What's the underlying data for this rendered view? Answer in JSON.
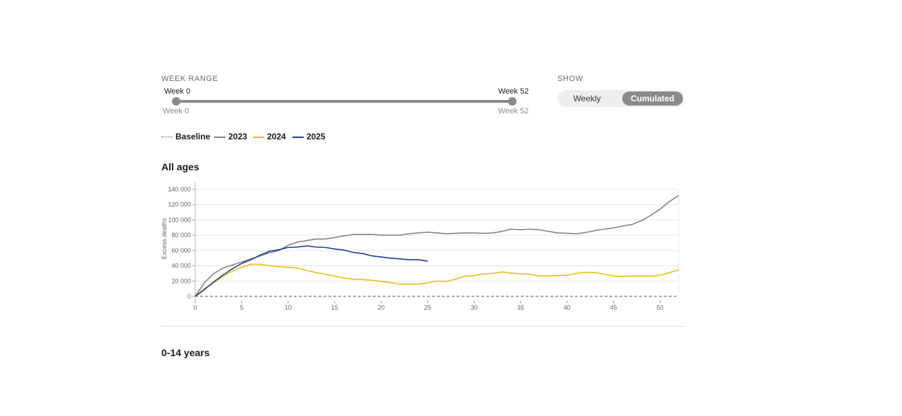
{
  "controls": {
    "week_range_label": "WEEK RANGE",
    "slider_min_label": "Week 0",
    "slider_max_label": "Week 52",
    "slider_min_value": "Week 0",
    "slider_max_value": "Week 52",
    "show_label": "SHOW",
    "toggle_weekly": "Weekly",
    "toggle_cumulated": "Cumulated",
    "selected": "Cumulated"
  },
  "legend": {
    "baseline": "Baseline",
    "y2023": "2023",
    "y2024": "2024",
    "y2025": "2025"
  },
  "section_title": "All ages",
  "next_section_title": "0-14 years",
  "colors": {
    "2023": "#858585",
    "2024": "#e6bf13",
    "2025": "#1c3f94",
    "baseline": "#555555",
    "grid": "#e5e5e5",
    "accent_gray": "#8a8a8a"
  },
  "chart_data": {
    "type": "line",
    "title": "All ages",
    "xlabel": "",
    "ylabel": "Excess deaths",
    "xlim": [
      0,
      52
    ],
    "ylim": [
      0,
      140000
    ],
    "x_ticks": [
      0,
      5,
      10,
      15,
      20,
      25,
      30,
      35,
      40,
      45,
      50
    ],
    "y_ticks": [
      0,
      20000,
      40000,
      60000,
      80000,
      100000,
      120000,
      140000
    ],
    "y_tick_labels": [
      "0",
      "20 000",
      "40 000",
      "60 000",
      "80 000",
      "100 000",
      "120 000",
      "140 000"
    ],
    "grid": true,
    "legend_position": "top-left",
    "series": [
      {
        "name": "2023",
        "x": [
          0,
          1,
          2,
          3,
          4,
          5,
          6,
          7,
          8,
          9,
          10,
          11,
          12,
          13,
          14,
          15,
          16,
          17,
          18,
          19,
          20,
          21,
          22,
          23,
          24,
          25,
          26,
          27,
          28,
          29,
          30,
          31,
          32,
          33,
          34,
          35,
          36,
          37,
          38,
          39,
          40,
          41,
          42,
          43,
          44,
          45,
          46,
          47,
          48,
          49,
          50,
          51,
          52
        ],
        "values": [
          0,
          18000,
          30000,
          37000,
          41000,
          45000,
          49000,
          53000,
          57000,
          60000,
          67000,
          71000,
          73000,
          75000,
          75000,
          77000,
          79000,
          81000,
          81000,
          81000,
          80000,
          80000,
          80000,
          82000,
          83000,
          84000,
          83000,
          82000,
          82500,
          83000,
          83000,
          82500,
          83000,
          85000,
          88000,
          87000,
          88000,
          87000,
          85000,
          83000,
          82500,
          82000,
          83500,
          86000,
          88000,
          89500,
          92000,
          94000,
          99000,
          106000,
          114000,
          124000,
          132000
        ]
      },
      {
        "name": "2024",
        "x": [
          0,
          1,
          2,
          3,
          4,
          5,
          6,
          7,
          8,
          9,
          10,
          11,
          12,
          13,
          14,
          15,
          16,
          17,
          18,
          19,
          20,
          21,
          22,
          23,
          24,
          25,
          26,
          27,
          28,
          29,
          30,
          31,
          32,
          33,
          34,
          35,
          36,
          37,
          38,
          39,
          40,
          41,
          42,
          43,
          44,
          45,
          46,
          47,
          48,
          49,
          50,
          51,
          52
        ],
        "values": [
          0,
          10000,
          18000,
          26000,
          33000,
          38000,
          42000,
          42000,
          40000,
          39000,
          38000,
          37000,
          34000,
          31000,
          29000,
          26500,
          24000,
          22500,
          22000,
          21000,
          19500,
          18000,
          16000,
          16000,
          16000,
          17500,
          20000,
          19500,
          22500,
          26500,
          27000,
          29500,
          30000,
          32000,
          30500,
          29500,
          29000,
          26500,
          27000,
          27000,
          27500,
          30000,
          31500,
          31000,
          29000,
          26500,
          26000,
          26500,
          26500,
          26500,
          27500,
          31000,
          34500
        ]
      },
      {
        "name": "2025",
        "x": [
          0,
          1,
          2,
          3,
          4,
          5,
          6,
          7,
          8,
          9,
          10,
          11,
          12,
          13,
          14,
          15,
          16,
          17,
          18,
          19,
          20,
          21,
          22,
          23,
          24,
          25
        ],
        "values": [
          0,
          9000,
          19000,
          28000,
          36000,
          43000,
          48000,
          54000,
          59000,
          61000,
          64000,
          64500,
          66000,
          64500,
          64000,
          62000,
          60500,
          57500,
          56000,
          53000,
          51500,
          50000,
          49000,
          48000,
          48000,
          46000
        ]
      },
      {
        "name": "Baseline",
        "x": [
          0,
          52
        ],
        "values": [
          0,
          0
        ]
      }
    ]
  }
}
